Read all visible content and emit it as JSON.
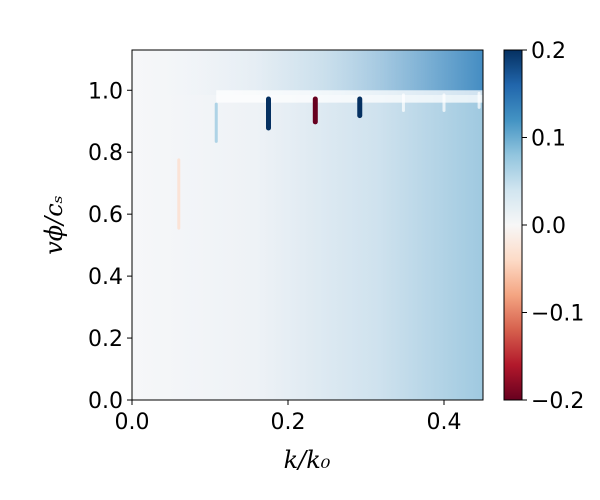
{
  "chart_data": {
    "type": "heatmap",
    "xlabel": "k/k₀",
    "ylabel": "vϕ/cₛ",
    "xlim": [
      0.0,
      0.45
    ],
    "ylim": [
      0.0,
      1.13
    ],
    "x_ticks": [
      {
        "value": 0.0,
        "label": "0.0"
      },
      {
        "value": 0.2,
        "label": "0.2"
      },
      {
        "value": 0.4,
        "label": "0.4"
      }
    ],
    "y_ticks": [
      {
        "value": 0.0,
        "label": "0.0"
      },
      {
        "value": 0.2,
        "label": "0.2"
      },
      {
        "value": 0.4,
        "label": "0.4"
      },
      {
        "value": 0.6,
        "label": "0.6"
      },
      {
        "value": 0.8,
        "label": "0.8"
      },
      {
        "value": 1.0,
        "label": "1.0"
      }
    ],
    "colorbar": {
      "colormap": "RdBu",
      "vmin": -0.2,
      "vmax": 0.2,
      "ticks": [
        {
          "value": 0.2,
          "label": "0.2"
        },
        {
          "value": 0.1,
          "label": "0.1"
        },
        {
          "value": 0.0,
          "label": "0.0"
        },
        {
          "value": -0.1,
          "label": "−0.1"
        },
        {
          "value": -0.2,
          "label": "−0.2"
        }
      ]
    },
    "background": {
      "description_value_at_k0": 0.0,
      "value_at_kmax_low_v": 0.085,
      "value_at_kmax_high_v": 0.13
    },
    "resonance_band": {
      "v_top": 1.0,
      "v_bottom": 0.96,
      "value_inside": 0.0
    },
    "features": [
      {
        "k": 0.06,
        "v_low": 0.55,
        "v_high": 0.78,
        "value": -0.04
      },
      {
        "k": 0.108,
        "v_low": 0.83,
        "v_high": 0.96,
        "value": 0.06
      },
      {
        "k": 0.175,
        "v_low": 0.87,
        "v_high": 0.98,
        "value": 0.2
      },
      {
        "k": 0.235,
        "v_low": 0.89,
        "v_high": 0.98,
        "value": -0.2
      },
      {
        "k": 0.292,
        "v_low": 0.91,
        "v_high": 0.98,
        "value": 0.2
      },
      {
        "k": 0.348,
        "v_low": 0.93,
        "v_high": 0.99,
        "value": 0.0
      },
      {
        "k": 0.4,
        "v_low": 0.93,
        "v_high": 0.99,
        "value": 0.0
      },
      {
        "k": 0.445,
        "v_low": 0.94,
        "v_high": 0.995,
        "value": 0.0
      }
    ]
  }
}
